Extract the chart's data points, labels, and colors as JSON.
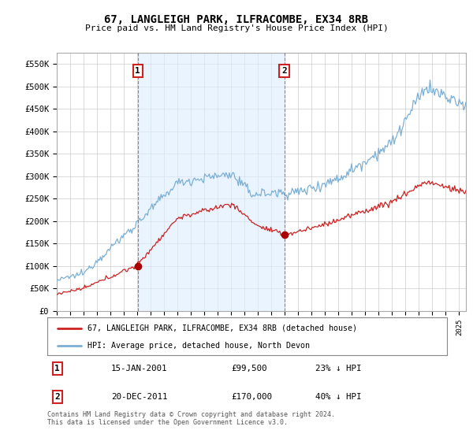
{
  "title": "67, LANGLEIGH PARK, ILFRACOMBE, EX34 8RB",
  "subtitle": "Price paid vs. HM Land Registry's House Price Index (HPI)",
  "legend_line1": "67, LANGLEIGH PARK, ILFRACOMBE, EX34 8RB (detached house)",
  "legend_line2": "HPI: Average price, detached house, North Devon",
  "footnote": "Contains HM Land Registry data © Crown copyright and database right 2024.\nThis data is licensed under the Open Government Licence v3.0.",
  "transaction1": {
    "label": "1",
    "date": "15-JAN-2001",
    "price": "£99,500",
    "hpi": "23% ↓ HPI"
  },
  "transaction2": {
    "label": "2",
    "date": "20-DEC-2011",
    "price": "£170,000",
    "hpi": "40% ↓ HPI"
  },
  "t1_year": 2001.04,
  "t2_year": 2011.96,
  "t1_price": 99500,
  "t2_price": 170000,
  "hpi_color": "#7bafd4",
  "hpi_shade_color": "#ddeeff",
  "price_color": "#cc2222",
  "marker_dot_color": "#aa0000",
  "vline_color": "#cc4444",
  "ylim": [
    0,
    575000
  ],
  "yticks": [
    0,
    50000,
    100000,
    150000,
    200000,
    250000,
    300000,
    350000,
    400000,
    450000,
    500000,
    550000
  ],
  "ytick_labels": [
    "£0",
    "£50K",
    "£100K",
    "£150K",
    "£200K",
    "£250K",
    "£300K",
    "£350K",
    "£400K",
    "£450K",
    "£500K",
    "£550K"
  ],
  "background_color": "#ffffff",
  "grid_color": "#cccccc",
  "xstart": 1995,
  "xend": 2025.5
}
